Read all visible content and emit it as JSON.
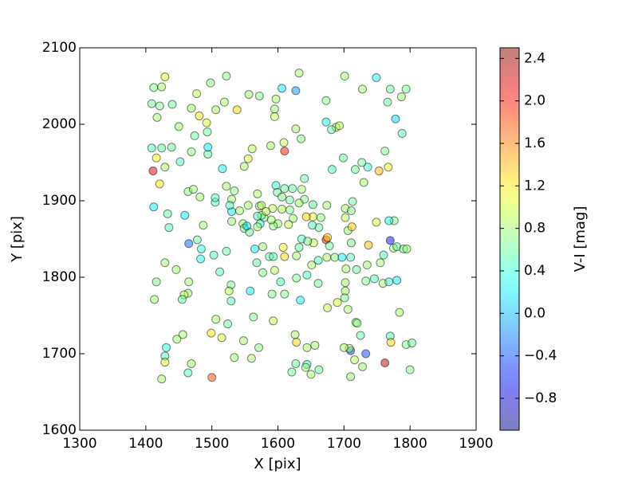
{
  "chart_data": {
    "type": "scatter",
    "xlabel": "X [pix]",
    "ylabel": "Y [pix]",
    "colorbar_label": "V-I [mag]",
    "xlim": [
      1300,
      1900
    ],
    "xticks": [
      1300,
      1400,
      1500,
      1600,
      1700,
      1800,
      1900
    ],
    "ylim": [
      1600,
      2100
    ],
    "yticks": [
      1600,
      1700,
      1800,
      1900,
      2000,
      2100
    ],
    "clim": [
      -1.1,
      2.5
    ],
    "cticks": [
      {
        "value": -0.8,
        "label": "−0.8"
      },
      {
        "value": -0.4,
        "label": "−0.4"
      },
      {
        "value": 0.0,
        "label": "0.0"
      },
      0.4,
      0.8,
      1.2,
      1.6,
      {
        "value": 2.0,
        "label": "2.0"
      },
      2.4
    ],
    "colormap": "jet",
    "alpha": 0.5,
    "x": [
      1412,
      1424,
      1429,
      1409,
      1421,
      1440,
      1417,
      1450,
      1469,
      1477,
      1481,
      1492,
      1498,
      1506,
      1522,
      1519,
      1538,
      1556,
      1572,
      1597,
      1606,
      1627,
      1632,
      1595,
      1595,
      1673,
      1701,
      1749,
      1728,
      1794,
      1787,
      1770,
      1766,
      1778,
      1788,
      1762,
      1767,
      1753,
      1736,
      1727,
      1717,
      1730,
      1699,
      1688,
      1693,
      1673,
      1681,
      1682,
      1627,
      1635,
      1609,
      1589,
      1610,
      1561,
      1555,
      1549,
      1516,
      1493,
      1494,
      1494,
      1469,
      1474,
      1452,
      1439,
      1424,
      1409,
      1416,
      1411,
      1429,
      1421,
      1412,
      1433,
      1435,
      1459,
      1464,
      1472,
      1482,
      1505,
      1505,
      1487,
      1465,
      1478,
      1484,
      1483,
      1503,
      1522,
      1512,
      1429,
      1446,
      1416,
      1465,
      1464,
      1458,
      1455,
      1413,
      1529,
      1526,
      1529,
      1506,
      1524,
      1558,
      1563,
      1593,
      1634,
      1610,
      1591,
      1604,
      1595,
      1577,
      1568,
      1577,
      1565,
      1587,
      1593,
      1610,
      1608,
      1628,
      1628,
      1644,
      1661,
      1651,
      1661,
      1654,
      1636,
      1632,
      1645,
      1673,
      1675,
      1678,
      1674,
      1686,
      1697,
      1710,
      1703,
      1702,
      1702,
      1701,
      1706,
      1675,
      1690,
      1733,
      1746,
      1759,
      1768,
      1780,
      1755,
      1760,
      1770,
      1775,
      1780,
      1790,
      1795,
      1776,
      1768,
      1749,
      1737,
      1711,
      1735,
      1719,
      1706,
      1702,
      1702,
      1713,
      1711,
      1712,
      1665,
      1653,
      1643,
      1653,
      1640,
      1632,
      1640,
      1636,
      1622,
      1610,
      1597,
      1599,
      1606,
      1606,
      1592,
      1618,
      1623,
      1600,
      1616,
      1593,
      1590,
      1579,
      1575,
      1573,
      1569,
      1572,
      1575,
      1582,
      1569,
      1555,
      1542,
      1530,
      1534,
      1522,
      1530,
      1527,
      1530,
      1547,
      1549,
      1557,
      1553,
      1569,
      1618,
      1674,
      1662,
      1652,
      1725,
      1718,
      1720,
      1770,
      1771,
      1794,
      1803,
      1800,
      1784,
      1710,
      1733,
      1708,
      1700,
      1728,
      1716,
      1762,
      1710,
      1571,
      1548,
      1534,
      1560,
      1515,
      1499,
      1500,
      1469,
      1464,
      1456,
      1447,
      1431,
      1429,
      1429,
      1424,
      1626,
      1628,
      1627,
      1644,
      1642,
      1650,
      1621,
      1644,
      1656,
      1662
    ],
    "y": [
      2048,
      2049,
      2062,
      2027,
      2024,
      2026,
      2009,
      1997,
      2021,
      2040,
      2011,
      2002,
      2054,
      2019,
      2063,
      2029,
      2019,
      2039,
      2037,
      2033,
      2047,
      2044,
      2067,
      2020,
      2010,
      2031,
      2063,
      2061,
      2046,
      2046,
      2036,
      2046,
      2029,
      2007,
      1988,
      1965,
      1944,
      1939,
      1944,
      1950,
      1941,
      1924,
      1956,
      1996,
      1998,
      2003,
      1993,
      1941,
      1994,
      1981,
      1976,
      1972,
      1965,
      1968,
      1955,
      1945,
      1942,
      1990,
      1961,
      1970,
      1964,
      1985,
      1951,
      1970,
      1969,
      1969,
      1956,
      1939,
      1944,
      1922,
      1892,
      1883,
      1865,
      1881,
      1912,
      1915,
      1905,
      1898,
      1904,
      1868,
      1844,
      1849,
      1837,
      1824,
      1829,
      1834,
      1807,
      1819,
      1810,
      1794,
      1794,
      1779,
      1777,
      1771,
      1771,
      1790,
      1782,
      1769,
      1745,
      1739,
      1782,
      1748,
      1743,
      1770,
      1778,
      1778,
      1794,
      1809,
      1806,
      1819,
      1840,
      1837,
      1827,
      1827,
      1827,
      1839,
      1828,
      1799,
      1803,
      1792,
      1816,
      1822,
      1845,
      1850,
      1839,
      1847,
      1849,
      1852,
      1841,
      1826,
      1826,
      1826,
      1826,
      1811,
      1793,
      1782,
      1773,
      1758,
      1760,
      1767,
      1795,
      1798,
      1792,
      1794,
      1796,
      1819,
      1829,
      1848,
      1838,
      1840,
      1837,
      1837,
      1874,
      1874,
      1872,
      1842,
      1845,
      1816,
      1810,
      1861,
      1878,
      1890,
      1899,
      1887,
      1866,
      1878,
      1879,
      1879,
      1895,
      1902,
      1897,
      1929,
      1915,
      1916,
      1916,
      1920,
      1911,
      1905,
      1889,
      1890,
      1888,
      1877,
      1870,
      1869,
      1867,
      1875,
      1878,
      1881,
      1870,
      1880,
      1893,
      1894,
      1886,
      1909,
      1894,
      1887,
      1902,
      1913,
      1919,
      1886,
      1894,
      1873,
      1870,
      1864,
      1859,
      1867,
      1866,
      1901,
      1894,
      1865,
      1868,
      1724,
      1741,
      1740,
      1723,
      1715,
      1712,
      1714,
      1679,
      1754,
      1704,
      1700,
      1707,
      1708,
      1683,
      1692,
      1688,
      1670,
      1708,
      1717,
      1695,
      1694,
      1721,
      1727,
      1669,
      1687,
      1675,
      1725,
      1719,
      1708,
      1697,
      1689,
      1667,
      1725,
      1715,
      1687,
      1686,
      1682,
      1673,
      1676,
      1708,
      1711,
      1679
    ],
    "color_values": [
      0.7,
      0.8,
      1.0,
      0.6,
      0.7,
      0.6,
      0.8,
      0.8,
      0.8,
      0.9,
      1.2,
      1.0,
      0.7,
      0.8,
      0.7,
      0.8,
      1.3,
      0.8,
      0.7,
      0.8,
      0.2,
      -0.1,
      0.8,
      0.8,
      0.9,
      0.7,
      0.8,
      0.3,
      0.8,
      0.7,
      0.8,
      0.6,
      0.6,
      0.1,
      0.5,
      0.7,
      1.1,
      1.4,
      0.4,
      0.6,
      0.6,
      0.8,
      0.6,
      0.8,
      0.9,
      0.3,
      0.6,
      0.5,
      0.8,
      0.7,
      0.9,
      0.8,
      2.0,
      0.9,
      1.0,
      0.8,
      0.3,
      0.6,
      0.6,
      0.2,
      0.7,
      0.6,
      0.5,
      0.6,
      0.6,
      0.5,
      1.1,
      2.2,
      0.8,
      1.2,
      0.2,
      0.6,
      0.5,
      0.2,
      0.7,
      0.8,
      0.8,
      0.5,
      0.5,
      0.8,
      -0.3,
      0.6,
      0.4,
      0.3,
      0.5,
      0.6,
      0.5,
      0.8,
      0.8,
      0.7,
      0.8,
      0.8,
      0.9,
      0.6,
      0.8,
      0.6,
      0.9,
      0.5,
      0.8,
      0.6,
      0.2,
      0.7,
      0.9,
      0.3,
      0.7,
      0.7,
      0.5,
      0.9,
      0.7,
      0.6,
      0.8,
      0.3,
      0.6,
      0.5,
      1.3,
      1.1,
      0.8,
      0.7,
      0.5,
      0.6,
      0.8,
      0.5,
      0.9,
      0.5,
      0.6,
      0.7,
      2.1,
      1.3,
      0.6,
      0.8,
      0.7,
      0.2,
      0.5,
      0.8,
      0.8,
      0.8,
      0.7,
      0.8,
      0.9,
      1.0,
      0.7,
      0.5,
      0.8,
      0.4,
      0.2,
      0.8,
      0.5,
      -0.6,
      0.8,
      0.6,
      0.6,
      0.8,
      0.7,
      0.3,
      1.0,
      1.4,
      0.7,
      0.8,
      0.6,
      0.8,
      0.9,
      0.8,
      0.6,
      0.7,
      1.3,
      0.7,
      1.0,
      1.3,
      0.6,
      0.7,
      0.8,
      0.6,
      0.8,
      0.6,
      0.6,
      0.4,
      0.6,
      0.7,
      0.9,
      0.9,
      0.7,
      0.8,
      0.8,
      0.9,
      0.7,
      0.8,
      0.6,
      0.8,
      0.4,
      0.5,
      0.8,
      0.9,
      0.9,
      0.8,
      0.8,
      0.8,
      0.8,
      0.7,
      0.8,
      0.2,
      0.5,
      0.8,
      0.8,
      0.6,
      0.6,
      0.1,
      0.8,
      0.6,
      0.8,
      0.6,
      0.5,
      0.6,
      0.6,
      0.8,
      0.5,
      1.3,
      0.7,
      0.6,
      0.7,
      0.8,
      -0.4,
      -0.4,
      0.8,
      0.8,
      0.8,
      0.9,
      2.3,
      0.8,
      0.7,
      0.8,
      0.8,
      0.8,
      1.0,
      1.2,
      1.8,
      0.8,
      0.5,
      0.8,
      0.8,
      0.4,
      0.5,
      1.0,
      0.8,
      0.8,
      1.3,
      0.6,
      0.4,
      0.8,
      0.8,
      0.6,
      0.8,
      0.8,
      0.6
    ]
  }
}
